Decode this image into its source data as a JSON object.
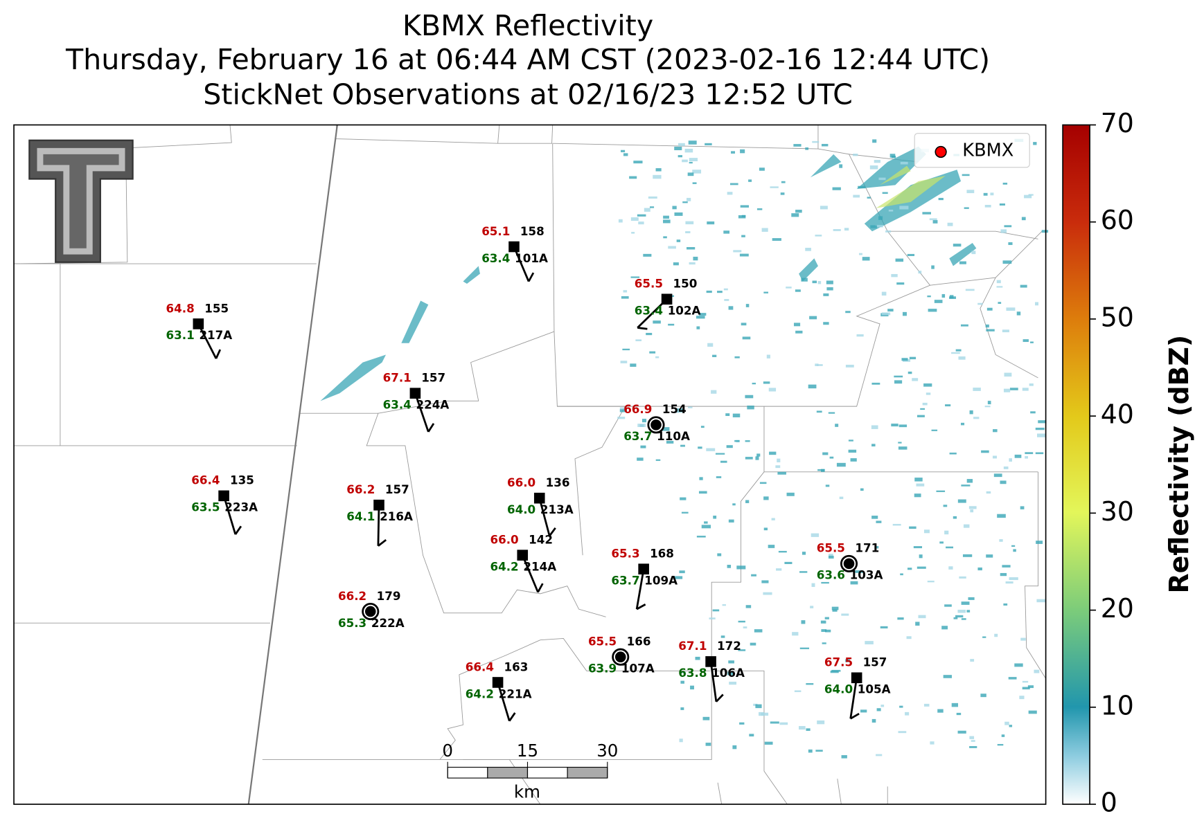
{
  "title": [
    "KBMX Reflectivity",
    "Thursday, February 16 at 06:44 AM CST (2023-02-16 12:44 UTC)",
    "StickNet Observations at 02/16/23 12:52 UTC"
  ],
  "legend": {
    "label": "KBMX",
    "color": "#ff0000"
  },
  "colorbar": {
    "label": "Reflectivity (dBZ)",
    "lim": [
      0,
      70
    ],
    "ticks": [
      0,
      10,
      20,
      30,
      40,
      50,
      60,
      70
    ]
  },
  "scale_bar": {
    "lim": [
      0,
      30
    ],
    "ticks": [
      0,
      15,
      30
    ],
    "unit": "km"
  },
  "stations": [
    {
      "id": "217A",
      "temperature": "64.8",
      "dewpoint": "63.1",
      "pressure": 155,
      "marker": "square"
    },
    {
      "id": "101A",
      "temperature": "65.1",
      "dewpoint": "63.4",
      "pressure": 158,
      "marker": "square"
    },
    {
      "id": "102A",
      "temperature": "65.5",
      "dewpoint": "63.4",
      "pressure": 150,
      "marker": "square"
    },
    {
      "id": "224A",
      "temperature": "67.1",
      "dewpoint": "63.4",
      "pressure": 157,
      "marker": "square"
    },
    {
      "id": "110A",
      "temperature": "66.9",
      "dewpoint": "63.7",
      "pressure": 154,
      "marker": "circle"
    },
    {
      "id": "223A",
      "temperature": "66.4",
      "dewpoint": "63.5",
      "pressure": 135,
      "marker": "square"
    },
    {
      "id": "216A",
      "temperature": "66.2",
      "dewpoint": "64.1",
      "pressure": 157,
      "marker": "square"
    },
    {
      "id": "213A",
      "temperature": "66.0",
      "dewpoint": "64.0",
      "pressure": 136,
      "marker": "square"
    },
    {
      "id": "214A",
      "temperature": "66.0",
      "dewpoint": "64.2",
      "pressure": 142,
      "marker": "square"
    },
    {
      "id": "109A",
      "temperature": "65.3",
      "dewpoint": "63.7",
      "pressure": 168,
      "marker": "square"
    },
    {
      "id": "103A",
      "temperature": "65.5",
      "dewpoint": "63.6",
      "pressure": 171,
      "marker": "circle"
    },
    {
      "id": "222A",
      "temperature": "66.2",
      "dewpoint": "65.3",
      "pressure": 179,
      "marker": "circle"
    },
    {
      "id": "107A",
      "temperature": "65.5",
      "dewpoint": "63.9",
      "pressure": 166,
      "marker": "circle"
    },
    {
      "id": "106A",
      "temperature": "67.1",
      "dewpoint": "63.8",
      "pressure": 172,
      "marker": "square"
    },
    {
      "id": "221A",
      "temperature": "66.4",
      "dewpoint": "64.2",
      "pressure": 163,
      "marker": "square"
    },
    {
      "id": "105A",
      "temperature": "67.5",
      "dewpoint": "64.0",
      "pressure": 157,
      "marker": "square"
    }
  ]
}
